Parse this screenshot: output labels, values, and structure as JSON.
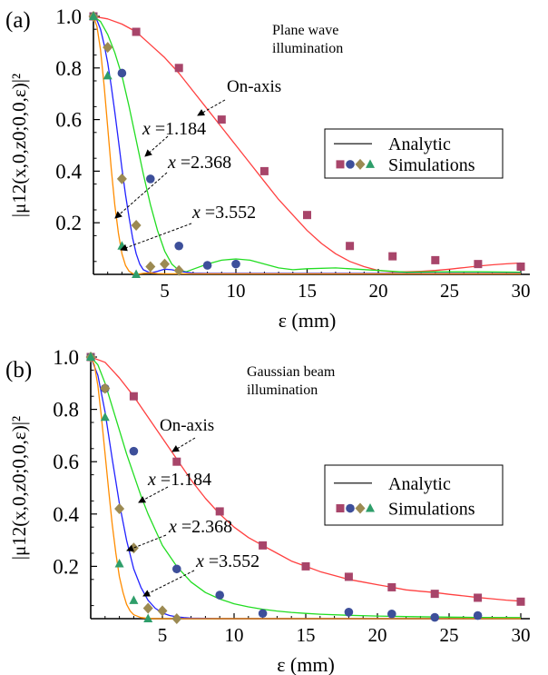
{
  "chart_data": [
    {
      "type": "line",
      "panel_label": "(a)",
      "illumination_label": [
        "Plane wave",
        "illumination"
      ],
      "ylabel": "|μ12(x,0,z0;0,0,ε)|²",
      "xlabel": "ε (mm)",
      "xlim": [
        0,
        30
      ],
      "ylim": [
        0,
        1.0
      ],
      "xticks": [
        5,
        10,
        15,
        20,
        25,
        30
      ],
      "yticks": [
        0.2,
        0.4,
        0.6,
        0.8,
        1.0
      ],
      "ytick_labels": [
        "0.2",
        "0.4",
        "0.6",
        "0.8",
        "1.0"
      ],
      "legend": {
        "position": "center-right",
        "line_label": "Analytic",
        "markers_label": "Simulations"
      },
      "annotations": [
        {
          "text": "On-axis",
          "series": "On-axis"
        },
        {
          "text": "x =1.184",
          "series": "x =1.184"
        },
        {
          "text": "x =2.368",
          "series": "x =2.368"
        },
        {
          "text": "x =3.552",
          "series": "x =3.552"
        }
      ],
      "series": [
        {
          "name": "On-axis",
          "color": "#ff4040",
          "marker": "square",
          "marker_color": "#a8456a",
          "curve": {
            "x": [
              0,
              1,
              2,
              3,
              4,
              5,
              6,
              7,
              8,
              9,
              10,
              11,
              12,
              13,
              14,
              15,
              16,
              17,
              18,
              19,
              20,
              21,
              22,
              23,
              24,
              25,
              26,
              27,
              28,
              29,
              30
            ],
            "y": [
              1.0,
              0.99,
              0.97,
              0.94,
              0.89,
              0.84,
              0.78,
              0.71,
              0.64,
              0.57,
              0.5,
              0.43,
              0.36,
              0.29,
              0.23,
              0.17,
              0.12,
              0.08,
              0.05,
              0.03,
              0.015,
              0.01,
              0.01,
              0.012,
              0.015,
              0.02,
              0.026,
              0.032,
              0.037,
              0.041,
              0.044
            ]
          },
          "points": {
            "x": [
              0,
              3,
              6,
              9,
              12,
              15,
              18,
              21,
              24,
              27,
              30
            ],
            "y": [
              1.0,
              0.94,
              0.8,
              0.6,
              0.4,
              0.23,
              0.11,
              0.07,
              0.055,
              0.04,
              0.03
            ]
          }
        },
        {
          "name": "x =1.184",
          "color": "#22dd22",
          "marker": "circle",
          "marker_color": "#3d4f9a",
          "curve": {
            "x": [
              0,
              0.5,
              1,
              1.5,
              2,
              2.5,
              3,
              3.5,
              4,
              4.5,
              5,
              5.5,
              6,
              6.5,
              7,
              8,
              9,
              10,
              11,
              12,
              13,
              14,
              15,
              17,
              20,
              22,
              24,
              27,
              30
            ],
            "y": [
              1.0,
              0.98,
              0.93,
              0.86,
              0.77,
              0.65,
              0.52,
              0.39,
              0.27,
              0.17,
              0.09,
              0.04,
              0.015,
              0.01,
              0.02,
              0.04,
              0.055,
              0.06,
              0.055,
              0.04,
              0.025,
              0.018,
              0.022,
              0.025,
              0.015,
              0.008,
              0.01,
              0.01,
              0.008
            ]
          },
          "points": {
            "x": [
              0,
              2,
              4,
              6,
              8,
              10
            ],
            "y": [
              1.0,
              0.78,
              0.37,
              0.11,
              0.035,
              0.04
            ]
          }
        },
        {
          "name": "x =2.368",
          "color": "#2222ff",
          "marker": "diamond",
          "marker_color": "#9c8a52",
          "curve": {
            "x": [
              0,
              0.25,
              0.5,
              0.75,
              1,
              1.25,
              1.5,
              1.75,
              2,
              2.25,
              2.5,
              2.75,
              3,
              3.25,
              3.5,
              4,
              4.5,
              5,
              5.5,
              6,
              7,
              8,
              10,
              15,
              20,
              25,
              30
            ],
            "y": [
              1.0,
              0.985,
              0.95,
              0.89,
              0.82,
              0.73,
              0.63,
              0.52,
              0.41,
              0.31,
              0.22,
              0.14,
              0.08,
              0.04,
              0.018,
              0.005,
              0.012,
              0.02,
              0.018,
              0.012,
              0.005,
              0.004,
              0.004,
              0.004,
              0.004,
              0.004,
              0.004
            ]
          },
          "points": {
            "x": [
              0,
              1,
              2,
              3,
              4,
              5,
              6
            ],
            "y": [
              1.0,
              0.88,
              0.37,
              0.19,
              0.03,
              0.04,
              0.015
            ]
          }
        },
        {
          "name": "x =3.552",
          "color": "#ff8c00",
          "marker": "triangle",
          "marker_color": "#2e9e6a",
          "curve": {
            "x": [
              0,
              0.25,
              0.5,
              0.75,
              1,
              1.25,
              1.5,
              1.75,
              2,
              2.25,
              2.5,
              2.75,
              3,
              3.5,
              4,
              4.5,
              5,
              6,
              8,
              10,
              15,
              20,
              25,
              30
            ],
            "y": [
              1.0,
              0.96,
              0.87,
              0.73,
              0.57,
              0.41,
              0.27,
              0.16,
              0.08,
              0.035,
              0.012,
              0.003,
              0.0,
              0.004,
              0.006,
              0.003,
              0.002,
              0.002,
              0.002,
              0.002,
              0.002,
              0.002,
              0.002,
              0.002
            ]
          },
          "points": {
            "x": [
              0,
              1,
              2,
              3
            ],
            "y": [
              1.0,
              0.77,
              0.11,
              0.0
            ]
          }
        }
      ]
    },
    {
      "type": "line",
      "panel_label": "(b)",
      "illumination_label": [
        "Gaussian beam",
        "illumination"
      ],
      "ylabel": "|μ12(x,0,z0;0,0,ε)|²",
      "xlabel": "ε (mm)",
      "xlim": [
        0,
        30
      ],
      "ylim": [
        0,
        1.0
      ],
      "xticks": [
        5,
        10,
        15,
        20,
        25,
        30
      ],
      "yticks": [
        0.2,
        0.4,
        0.6,
        0.8,
        1.0
      ],
      "ytick_labels": [
        "0.2",
        "0.4",
        "0.6",
        "0.8",
        "1.0"
      ],
      "legend": {
        "position": "center-right",
        "line_label": "Analytic",
        "markers_label": "Simulations"
      },
      "annotations": [
        {
          "text": "On-axis",
          "series": "On-axis"
        },
        {
          "text": "x =1.184",
          "series": "x =1.184"
        },
        {
          "text": "x =2.368",
          "series": "x =2.368"
        },
        {
          "text": "x =3.552",
          "series": "x =3.552"
        }
      ],
      "series": [
        {
          "name": "On-axis",
          "color": "#ff4040",
          "marker": "square",
          "marker_color": "#a8456a",
          "curve": {
            "x": [
              0,
              1,
              2,
              3,
              4,
              5,
              6,
              7,
              8,
              9,
              10,
              11,
              12,
              13,
              14,
              15,
              16,
              17,
              18,
              19,
              20,
              21,
              22,
              23,
              24,
              25,
              26,
              27,
              28,
              29,
              30
            ],
            "y": [
              1.0,
              0.98,
              0.92,
              0.85,
              0.77,
              0.69,
              0.61,
              0.53,
              0.46,
              0.4,
              0.35,
              0.31,
              0.28,
              0.25,
              0.22,
              0.2,
              0.18,
              0.165,
              0.15,
              0.14,
              0.13,
              0.12,
              0.11,
              0.105,
              0.1,
              0.093,
              0.087,
              0.081,
              0.076,
              0.071,
              0.067
            ]
          },
          "points": {
            "x": [
              0,
              3,
              6,
              9,
              12,
              15,
              18,
              21,
              24,
              27,
              30
            ],
            "y": [
              1.0,
              0.85,
              0.6,
              0.41,
              0.28,
              0.2,
              0.16,
              0.12,
              0.095,
              0.08,
              0.065
            ]
          }
        },
        {
          "name": "x =1.184",
          "color": "#22dd22",
          "marker": "circle",
          "marker_color": "#3d4f9a",
          "curve": {
            "x": [
              0,
              0.5,
              1,
              1.5,
              2,
              2.5,
              3,
              3.5,
              4,
              4.5,
              5,
              5.5,
              6,
              7,
              8,
              9,
              10,
              11,
              12,
              13,
              14,
              15,
              16,
              18,
              20,
              22,
              25,
              27,
              30
            ],
            "y": [
              1.0,
              0.97,
              0.9,
              0.81,
              0.72,
              0.63,
              0.55,
              0.47,
              0.4,
              0.34,
              0.28,
              0.24,
              0.2,
              0.14,
              0.1,
              0.075,
              0.057,
              0.045,
              0.036,
              0.029,
              0.024,
              0.02,
              0.017,
              0.013,
              0.01,
              0.008,
              0.006,
              0.005,
              0.004
            ]
          },
          "points": {
            "x": [
              0,
              1,
              3,
              6,
              9,
              12,
              18,
              21,
              24,
              27
            ],
            "y": [
              1.0,
              0.88,
              0.64,
              0.19,
              0.09,
              0.02,
              0.025,
              0.018,
              0.005,
              0.012
            ]
          }
        },
        {
          "name": "x =2.368",
          "color": "#2222ff",
          "marker": "diamond",
          "marker_color": "#9c8a52",
          "curve": {
            "x": [
              0,
              0.5,
              1,
              1.5,
              2,
              2.5,
              3,
              3.5,
              4,
              4.5,
              5,
              5.5,
              6,
              6.5,
              7,
              8,
              9,
              10,
              12,
              15,
              20,
              25,
              30
            ],
            "y": [
              1.0,
              0.93,
              0.79,
              0.61,
              0.44,
              0.3,
              0.19,
              0.12,
              0.07,
              0.04,
              0.022,
              0.012,
              0.007,
              0.004,
              0.002,
              0.001,
              0.0,
              0.0,
              0.0,
              0.0,
              0.0,
              0.0,
              0.0
            ]
          },
          "points": {
            "x": [
              0,
              1,
              2,
              3,
              4,
              5,
              6
            ],
            "y": [
              1.0,
              0.88,
              0.42,
              0.27,
              0.04,
              0.03,
              0.0
            ]
          }
        },
        {
          "name": "x =3.552",
          "color": "#ff8c00",
          "marker": "triangle",
          "marker_color": "#2e9e6a",
          "curve": {
            "x": [
              0,
              0.25,
              0.5,
              0.75,
              1,
              1.25,
              1.5,
              1.75,
              2,
              2.25,
              2.5,
              2.75,
              3,
              3.5,
              4,
              4.5,
              5,
              6,
              8,
              10,
              15,
              20,
              25,
              30
            ],
            "y": [
              1.0,
              0.97,
              0.89,
              0.77,
              0.63,
              0.49,
              0.36,
              0.25,
              0.16,
              0.1,
              0.055,
              0.03,
              0.015,
              0.004,
              0.001,
              0.0,
              0.0,
              0.0,
              0.0,
              0.0,
              0.0,
              0.0,
              0.0,
              0.0
            ]
          },
          "points": {
            "x": [
              0,
              1,
              2,
              3,
              4
            ],
            "y": [
              1.0,
              0.77,
              0.21,
              0.07,
              0.0
            ]
          }
        }
      ]
    }
  ]
}
